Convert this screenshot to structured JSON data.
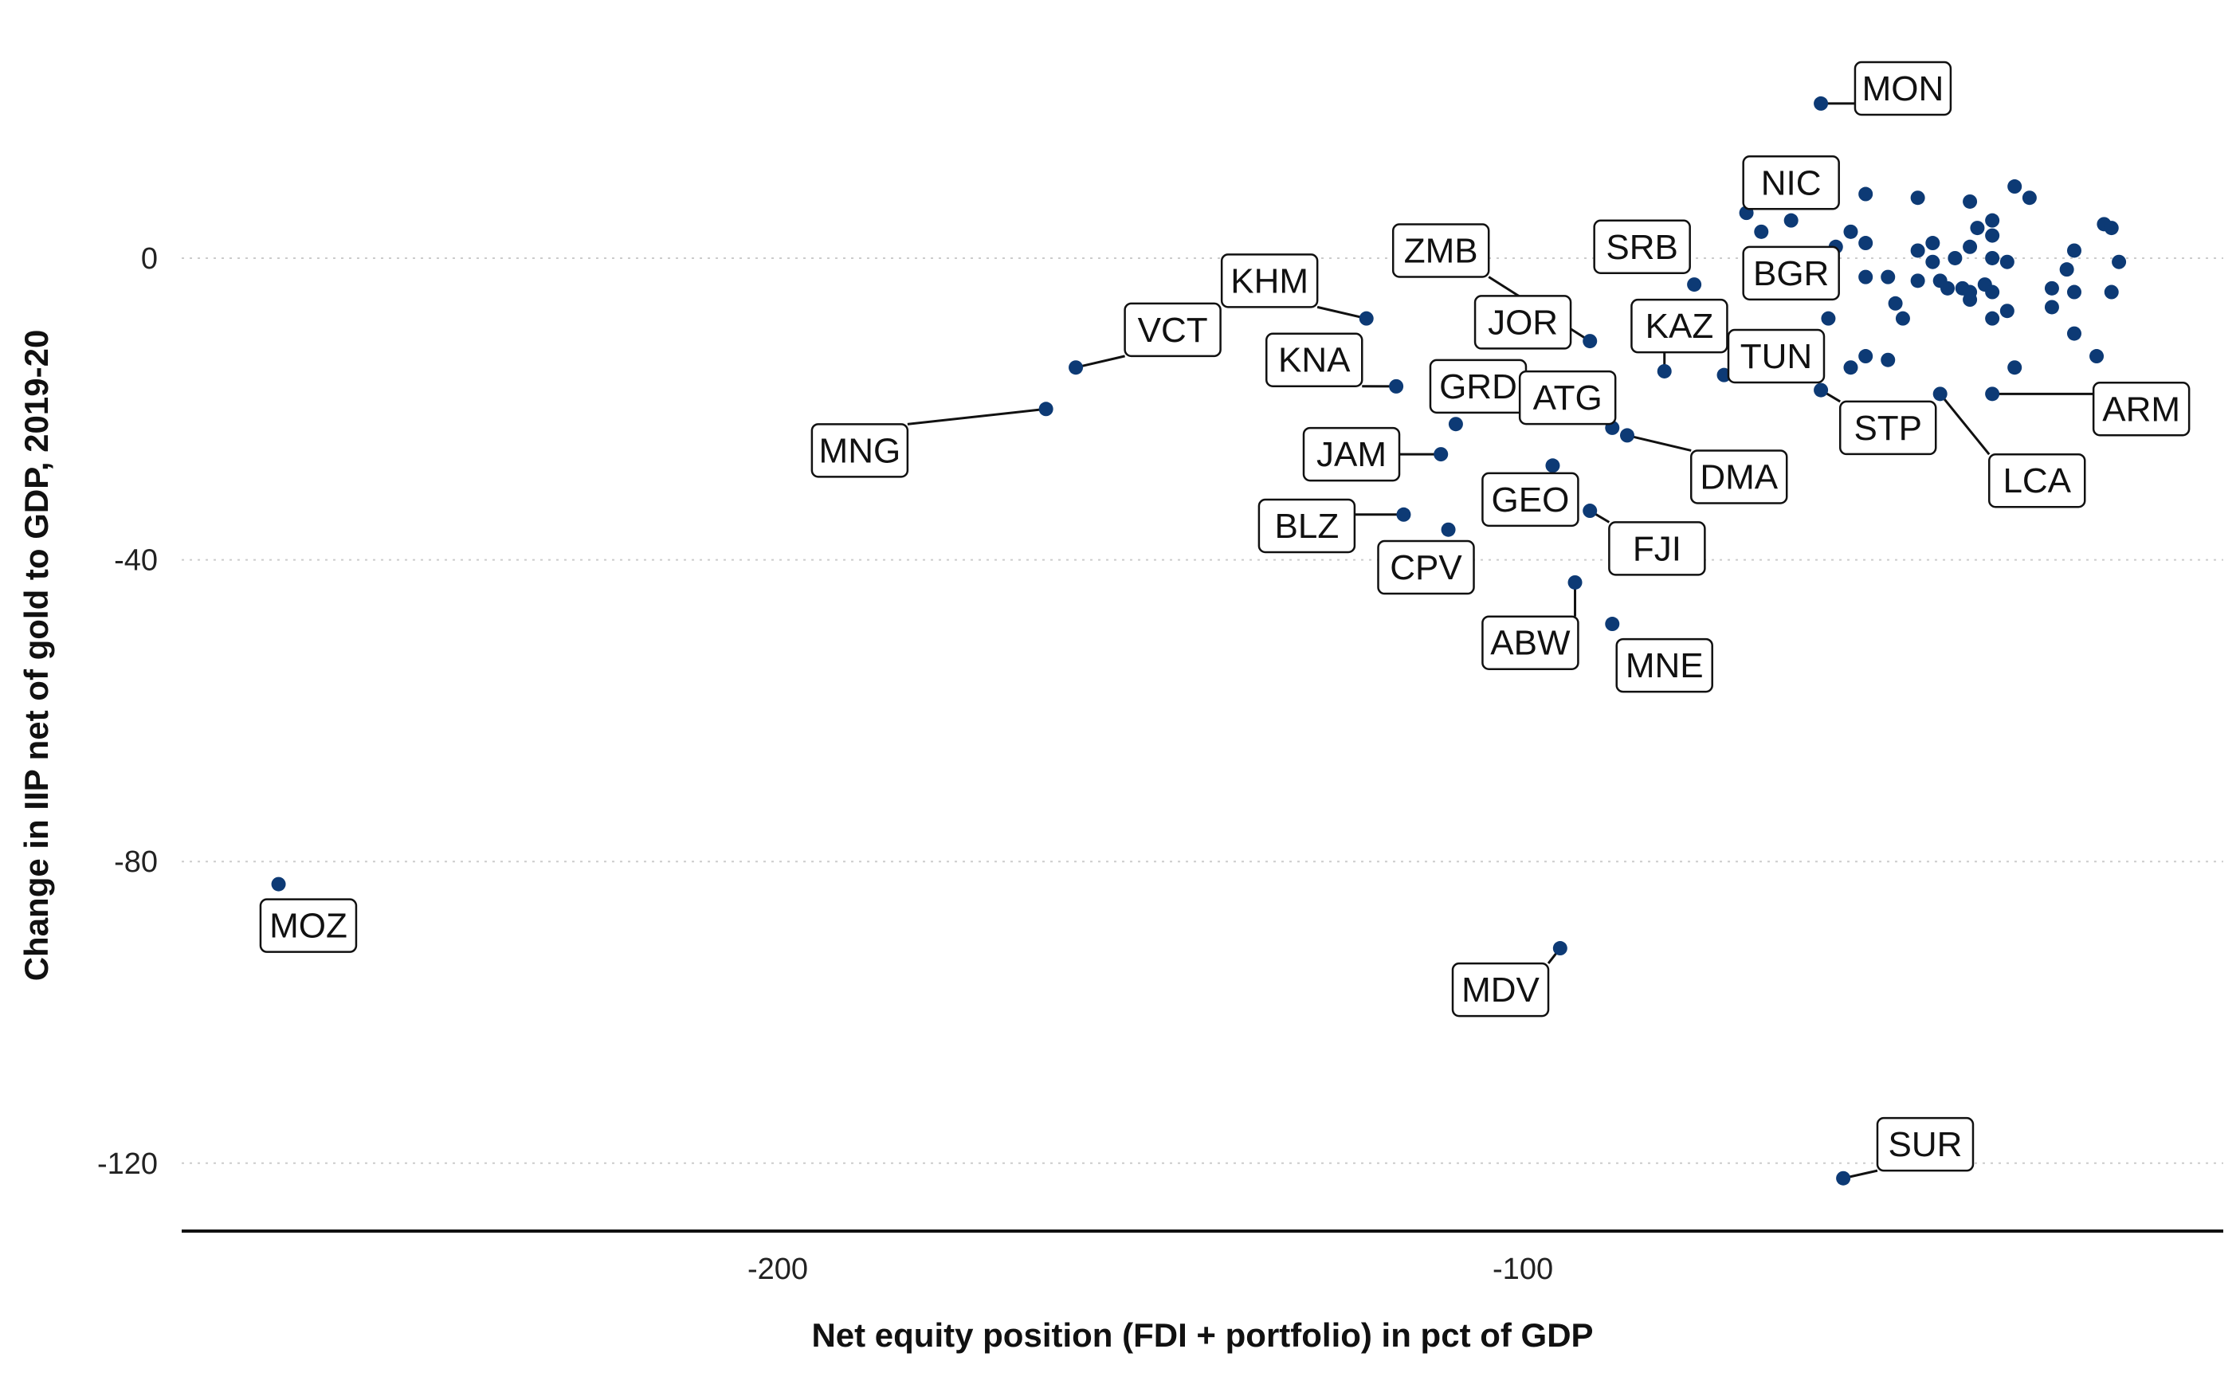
{
  "colors": {
    "point": "#0d3a75",
    "grid": "#cccccc",
    "axis": "#111111",
    "background": "#ffffff"
  },
  "chart_data": {
    "type": "scatter",
    "title": "",
    "xlabel": "Net equity position (FDI + portfolio) in pct of GDP",
    "ylabel": "Change in IIP net of gold to GDP, 2019-20",
    "xlim": [
      -280,
      -6
    ],
    "ylim": [
      -129,
      30
    ],
    "x_ticks": [
      -200,
      -100
    ],
    "y_ticks": [
      0,
      -40,
      -80,
      -120
    ],
    "grid": {
      "horizontal": true,
      "vertical": false,
      "style": "dotted"
    },
    "legend": "none",
    "labeled_points": [
      {
        "label": "MON",
        "x": -60,
        "y": 20.5,
        "lx": -49,
        "ly": 22.5
      },
      {
        "label": "NIC",
        "x": -64,
        "y": 5,
        "lx": -64,
        "ly": 10
      },
      {
        "label": "BGR",
        "x": -58,
        "y": 1.5,
        "lx": -64,
        "ly": -2
      },
      {
        "label": "SRB",
        "x": -77,
        "y": -3.5,
        "lx": -84,
        "ly": 1.5
      },
      {
        "label": "ZMB",
        "x": -91,
        "y": -11,
        "lx": -111,
        "ly": 1
      },
      {
        "label": "JOR",
        "x": -96,
        "y": -11,
        "lx": -100,
        "ly": -8.5
      },
      {
        "label": "KAZ",
        "x": -81,
        "y": -15,
        "lx": -79,
        "ly": -9
      },
      {
        "label": "TUN",
        "x": -73,
        "y": -15.5,
        "lx": -66,
        "ly": -13
      },
      {
        "label": "KHM",
        "x": -121,
        "y": -8,
        "lx": -134,
        "ly": -3
      },
      {
        "label": "VCT",
        "x": -160,
        "y": -14.5,
        "lx": -147,
        "ly": -9.5
      },
      {
        "label": "MNG",
        "x": -164,
        "y": -20,
        "lx": -189,
        "ly": -25.5
      },
      {
        "label": "KNA",
        "x": -117,
        "y": -17,
        "lx": -128,
        "ly": -13.5
      },
      {
        "label": "GRD",
        "x": -109,
        "y": -22,
        "lx": -106,
        "ly": -17
      },
      {
        "label": "ATG",
        "x": -88,
        "y": -22.5,
        "lx": -94,
        "ly": -18.5
      },
      {
        "label": "STP",
        "x": -60,
        "y": -17.5,
        "lx": -51,
        "ly": -22.5
      },
      {
        "label": "LCA",
        "x": -44,
        "y": -18,
        "lx": -31,
        "ly": -29.5
      },
      {
        "label": "ARM",
        "x": -37,
        "y": -18,
        "lx": -17,
        "ly": -20
      },
      {
        "label": "JAM",
        "x": -111,
        "y": -26,
        "lx": -123,
        "ly": -26
      },
      {
        "label": "DMA",
        "x": -86,
        "y": -23.5,
        "lx": -71,
        "ly": -29
      },
      {
        "label": "GEO",
        "x": -96,
        "y": -27.5,
        "lx": -99,
        "ly": -32
      },
      {
        "label": "BLZ",
        "x": -116,
        "y": -34,
        "lx": -129,
        "ly": -35.5
      },
      {
        "label": "CPV",
        "x": -110,
        "y": -36,
        "lx": -113,
        "ly": -41
      },
      {
        "label": "FJI",
        "x": -91,
        "y": -33.5,
        "lx": -82,
        "ly": -38.5
      },
      {
        "label": "ABW",
        "x": -93,
        "y": -43,
        "lx": -99,
        "ly": -51
      },
      {
        "label": "MNE",
        "x": -88,
        "y": -48.5,
        "lx": -81,
        "ly": -54
      },
      {
        "label": "MOZ",
        "x": -267,
        "y": -83,
        "lx": -263,
        "ly": -88.5
      },
      {
        "label": "MDV",
        "x": -95,
        "y": -91.5,
        "lx": -103,
        "ly": -97
      },
      {
        "label": "SUR",
        "x": -57,
        "y": -122,
        "lx": -46,
        "ly": -117.5
      }
    ],
    "unlabeled_points": [
      {
        "x": -70,
        "y": 6
      },
      {
        "x": -68,
        "y": 3.5
      },
      {
        "x": -56,
        "y": 3.5
      },
      {
        "x": -54,
        "y": 8.5
      },
      {
        "x": -47,
        "y": 8
      },
      {
        "x": -40,
        "y": 7.5
      },
      {
        "x": -34,
        "y": 9.5
      },
      {
        "x": -32,
        "y": 8
      },
      {
        "x": -37,
        "y": 5
      },
      {
        "x": -39,
        "y": 4
      },
      {
        "x": -37,
        "y": 3
      },
      {
        "x": -54,
        "y": 2
      },
      {
        "x": -45,
        "y": 2
      },
      {
        "x": -40,
        "y": 1.5
      },
      {
        "x": -47,
        "y": 1
      },
      {
        "x": -45,
        "y": -0.5
      },
      {
        "x": -42,
        "y": 0
      },
      {
        "x": -37,
        "y": 0
      },
      {
        "x": -35,
        "y": -0.5
      },
      {
        "x": -26,
        "y": 1
      },
      {
        "x": -22,
        "y": 4.5
      },
      {
        "x": -21,
        "y": 4
      },
      {
        "x": -20,
        "y": -0.5
      },
      {
        "x": -27,
        "y": -1.5
      },
      {
        "x": -54,
        "y": -2.5
      },
      {
        "x": -51,
        "y": -2.5
      },
      {
        "x": -47,
        "y": -3
      },
      {
        "x": -44,
        "y": -3
      },
      {
        "x": -43,
        "y": -4
      },
      {
        "x": -41,
        "y": -4
      },
      {
        "x": -40,
        "y": -4.5
      },
      {
        "x": -40,
        "y": -5.5
      },
      {
        "x": -38,
        "y": -3.5
      },
      {
        "x": -37,
        "y": -4.5
      },
      {
        "x": -29,
        "y": -4
      },
      {
        "x": -26,
        "y": -4.5
      },
      {
        "x": -21,
        "y": -4.5
      },
      {
        "x": -50,
        "y": -6
      },
      {
        "x": -49,
        "y": -8
      },
      {
        "x": -37,
        "y": -8
      },
      {
        "x": -35,
        "y": -7
      },
      {
        "x": -29,
        "y": -6.5
      },
      {
        "x": -26,
        "y": -10
      },
      {
        "x": -59,
        "y": -8
      },
      {
        "x": -54,
        "y": -13
      },
      {
        "x": -56,
        "y": -14.5
      },
      {
        "x": -51,
        "y": -13.5
      },
      {
        "x": -34,
        "y": -14.5
      },
      {
        "x": -23,
        "y": -13
      }
    ]
  }
}
